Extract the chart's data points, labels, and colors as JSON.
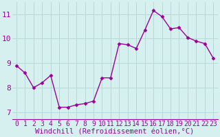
{
  "x": [
    0,
    1,
    2,
    3,
    4,
    5,
    6,
    7,
    8,
    9,
    10,
    11,
    12,
    13,
    14,
    15,
    16,
    17,
    18,
    19,
    20,
    21,
    22,
    23
  ],
  "y": [
    8.9,
    8.6,
    8.0,
    8.2,
    8.5,
    7.2,
    7.2,
    7.3,
    7.35,
    7.45,
    8.4,
    8.4,
    9.8,
    9.75,
    9.6,
    10.35,
    11.15,
    10.9,
    10.4,
    10.45,
    10.05,
    9.9,
    9.8,
    9.2
  ],
  "line_color": "#990099",
  "marker": "D",
  "marker_size": 2.5,
  "xlabel": "Windchill (Refroidissement éolien,°C)",
  "xlabel_fontsize": 7.5,
  "ylabel_ticks": [
    7,
    8,
    9,
    10,
    11
  ],
  "xtick_labels": [
    "0",
    "1",
    "2",
    "3",
    "4",
    "5",
    "6",
    "7",
    "8",
    "9",
    "10",
    "11",
    "12",
    "13",
    "14",
    "15",
    "16",
    "17",
    "18",
    "19",
    "20",
    "21",
    "22",
    "23"
  ],
  "ylim": [
    6.7,
    11.5
  ],
  "xlim": [
    -0.5,
    23.5
  ],
  "background_color": "#d6f0f0",
  "grid_color": "#b8d8d8",
  "tick_color": "#990099",
  "tick_fontsize": 7,
  "line_width": 1.0
}
